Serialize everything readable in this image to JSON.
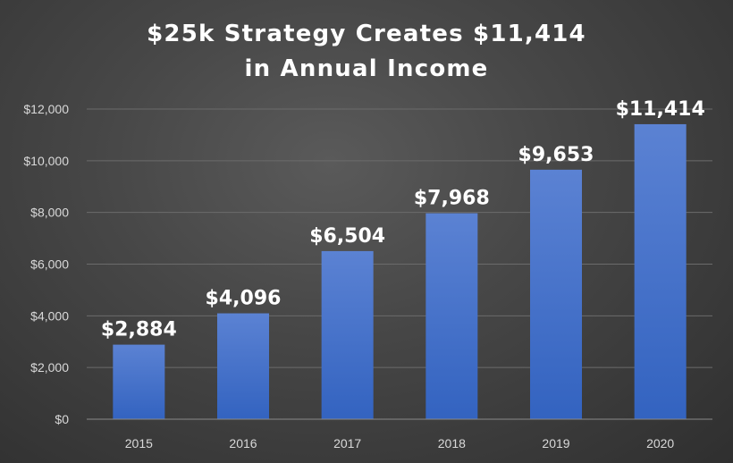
{
  "chart_data": {
    "type": "bar",
    "title_line1": "$25k Strategy Creates $11,414",
    "title_line2": "in Annual Income",
    "categories": [
      "2015",
      "2016",
      "2017",
      "2018",
      "2019",
      "2020"
    ],
    "values": [
      2884,
      4096,
      6504,
      7968,
      9653,
      11414
    ],
    "data_labels": [
      "$2,884",
      "$4,096",
      "$6,504",
      "$7,968",
      "$9,653",
      "$11,414"
    ],
    "y_ticks": [
      0,
      2000,
      4000,
      6000,
      8000,
      10000,
      12000
    ],
    "y_tick_labels": [
      "$0",
      "$2,000",
      "$4,000",
      "$6,000",
      "$8,000",
      "$10,000",
      "$12,000"
    ],
    "ylim": [
      0,
      12000
    ],
    "grid": true,
    "legend": "none",
    "xlabel": "",
    "ylabel": "",
    "colors": {
      "bar_top": "#5b82d3",
      "bar_bottom": "#3363c0",
      "grid": "#6b6b6b",
      "axis_text": "#d9d9d9",
      "title": "#ffffff"
    }
  }
}
